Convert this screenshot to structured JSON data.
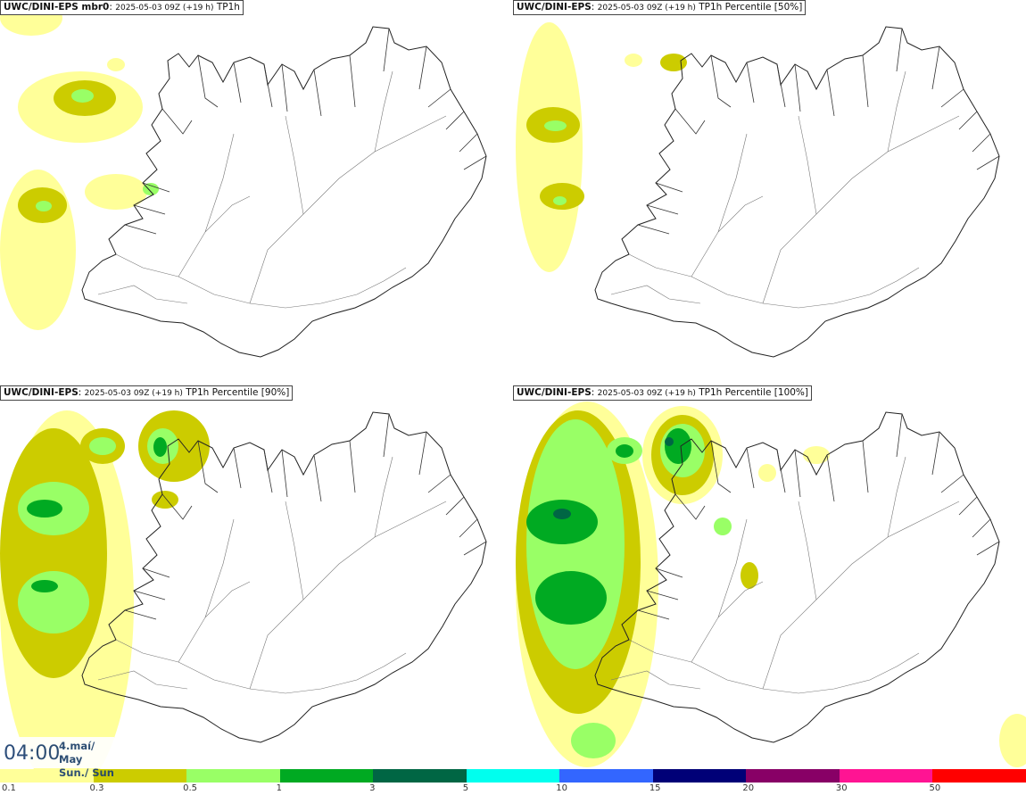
{
  "panels": [
    {
      "model": "UWC/DINI-EPS mbr0",
      "run": "2025-05-03 09Z (+19 h)",
      "param": "TP1h"
    },
    {
      "model": "UWC/DINI-EPS",
      "run": "2025-05-03 09Z (+19 h)",
      "param": "TP1h Percentile [50%]"
    },
    {
      "model": "UWC/DINI-EPS",
      "run": "2025-05-03 09Z (+19 h)",
      "param": "TP1h Percentile [90%]"
    },
    {
      "model": "UWC/DINI-EPS",
      "run": "2025-05-03 09Z (+19 h)",
      "param": "TP1h Percentile [100%]"
    }
  ],
  "valid_time": {
    "time": "04:00",
    "date": "4.maí/ May",
    "day": "Sun./ Sun"
  },
  "legend": {
    "ticks": [
      "0.1",
      "0.3",
      "0.5",
      "1",
      "3",
      "5",
      "10",
      "15",
      "20",
      "30",
      "50"
    ],
    "colors": [
      "#ffff99",
      "#cccc00",
      "#99ff66",
      "#00aa22",
      "#006644",
      "#00ffee",
      "#3366ff",
      "#000077",
      "#880066",
      "#ff1493",
      "#ff0000"
    ]
  }
}
